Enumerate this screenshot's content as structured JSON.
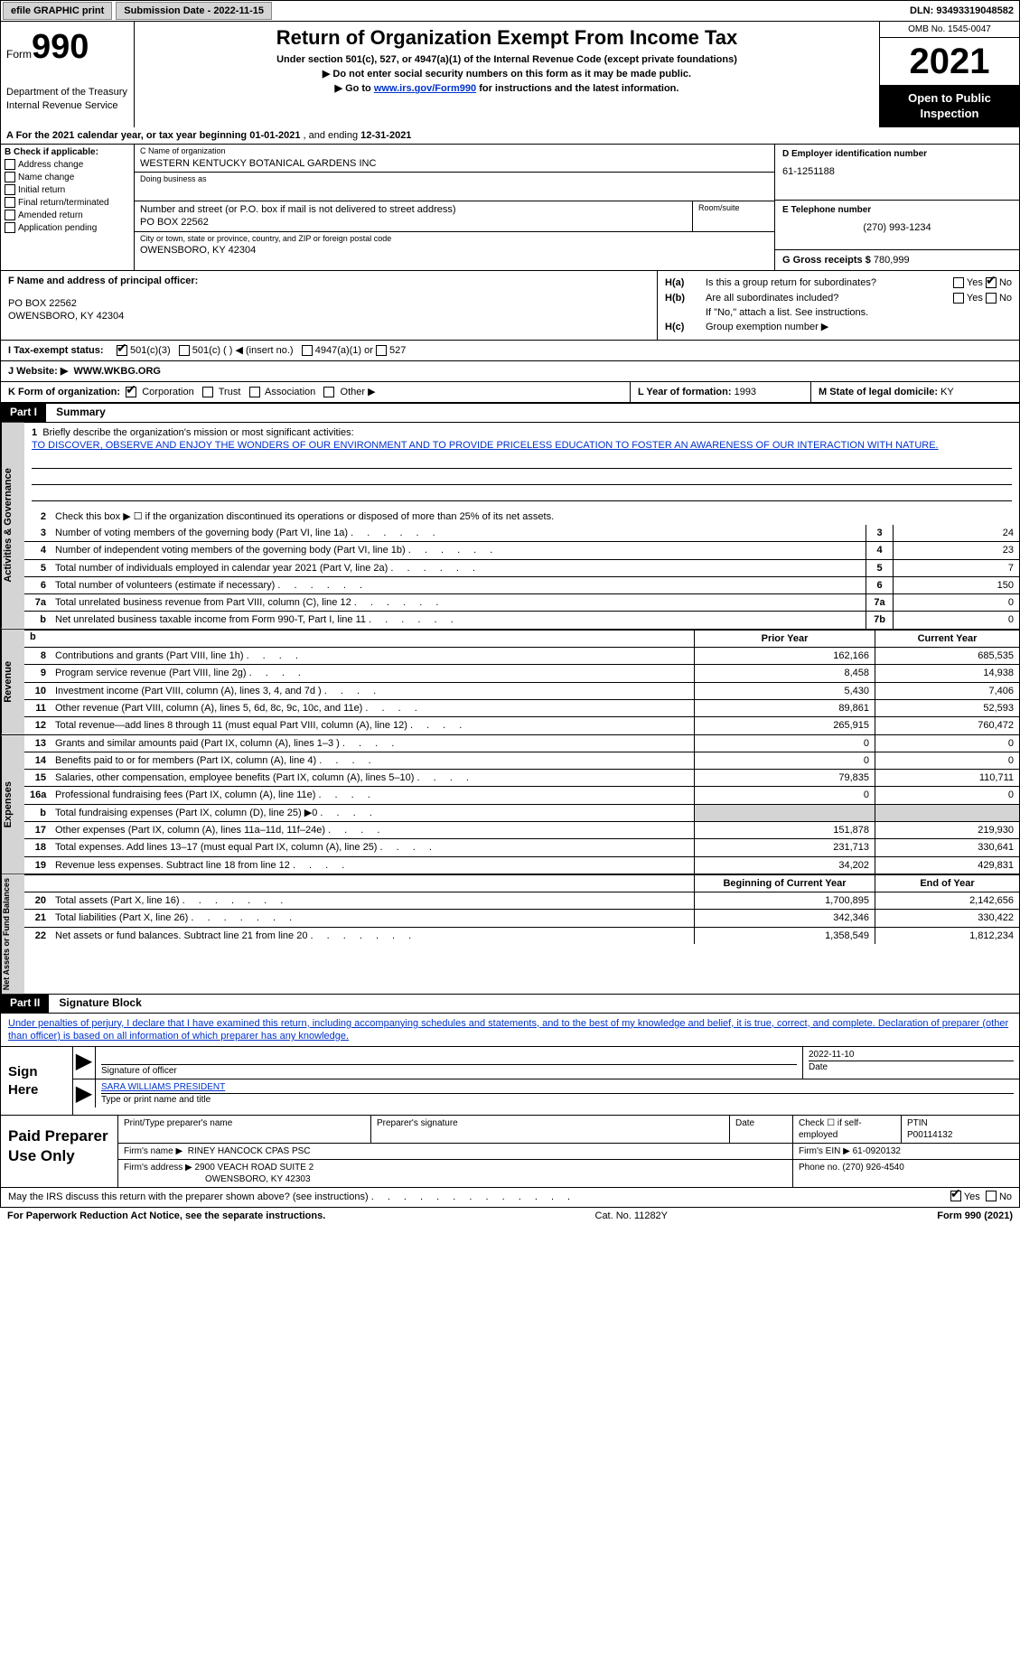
{
  "topbar": {
    "efile_btn": "efile GRAPHIC print",
    "submission_label": "Submission Date - 2022-11-15",
    "dln": "DLN: 93493319048582"
  },
  "header": {
    "form_prefix": "Form",
    "form_number": "990",
    "dept": "Department of the Treasury",
    "irs": "Internal Revenue Service",
    "title": "Return of Organization Exempt From Income Tax",
    "subtitle": "Under section 501(c), 527, or 4947(a)(1) of the Internal Revenue Code (except private foundations)",
    "instr1": "▶ Do not enter social security numbers on this form as it may be made public.",
    "instr2_pre": "▶ Go to ",
    "instr2_link": "www.irs.gov/Form990",
    "instr2_post": " for instructions and the latest information.",
    "omb": "OMB No. 1545-0047",
    "year": "2021",
    "open_pub": "Open to Public Inspection"
  },
  "line_a": {
    "text_pre": "A For the 2021 calendar year, or tax year beginning ",
    "begin": "01-01-2021",
    "mid": " , and ending ",
    "end": "12-31-2021"
  },
  "box_b": {
    "label": "B Check if applicable:",
    "items": [
      "Address change",
      "Name change",
      "Initial return",
      "Final return/terminated",
      "Amended return",
      "Application pending"
    ]
  },
  "box_c": {
    "name_label": "C Name of organization",
    "name": "WESTERN KENTUCKY BOTANICAL GARDENS INC",
    "dba_label": "Doing business as",
    "addr_label": "Number and street (or P.O. box if mail is not delivered to street address)",
    "addr": "PO BOX 22562",
    "room_label": "Room/suite",
    "city_label": "City or town, state or province, country, and ZIP or foreign postal code",
    "city": "OWENSBORO, KY  42304"
  },
  "box_d": {
    "ein_label": "D Employer identification number",
    "ein": "61-1251188",
    "phone_label": "E Telephone number",
    "phone": "(270) 993-1234",
    "gross_label": "G Gross receipts $",
    "gross": "780,999"
  },
  "box_f": {
    "label": "F Name and address of principal officer:",
    "addr1": "PO BOX 22562",
    "addr2": "OWENSBORO, KY  42304"
  },
  "box_h": {
    "ha_label": "H(a)",
    "ha_text": "Is this a group return for subordinates?",
    "hb_label": "H(b)",
    "hb_text": "Are all subordinates included?",
    "hb_note": "If \"No,\" attach a list. See instructions.",
    "hc_label": "H(c)",
    "hc_text": "Group exemption number ▶",
    "yes": "Yes",
    "no": "No"
  },
  "box_i": {
    "label": "I   Tax-exempt status:",
    "opt1": "501(c)(3)",
    "opt2": "501(c) (  ) ◀ (insert no.)",
    "opt3": "4947(a)(1) or",
    "opt4": "527"
  },
  "box_j": {
    "label": "J   Website: ▶",
    "val": "WWW.WKBG.ORG"
  },
  "box_k": {
    "label": "K Form of organization:",
    "opts": [
      "Corporation",
      "Trust",
      "Association",
      "Other ▶"
    ],
    "l_label": "L Year of formation:",
    "l_val": "1993",
    "m_label": "M State of legal domicile:",
    "m_val": "KY"
  },
  "part1": {
    "header": "Part I",
    "title": "Summary",
    "line1_label": "Briefly describe the organization's mission or most significant activities:",
    "mission": "TO DISCOVER, OBSERVE AND ENJOY THE WONDERS OF OUR ENVIRONMENT AND TO PROVIDE PRICELESS EDUCATION TO FOSTER AN AWARENESS OF OUR INTERACTION WITH NATURE.",
    "line2": "Check this box ▶ ☐ if the organization discontinued its operations or disposed of more than 25% of its net assets.",
    "vtab_ag": "Activities & Governance",
    "vtab_rev": "Revenue",
    "vtab_exp": "Expenses",
    "vtab_na": "Net Assets or Fund Balances",
    "lines_small": [
      {
        "n": "3",
        "t": "Number of voting members of the governing body (Part VI, line 1a)",
        "box": "3",
        "v": "24"
      },
      {
        "n": "4",
        "t": "Number of independent voting members of the governing body (Part VI, line 1b)",
        "box": "4",
        "v": "23"
      },
      {
        "n": "5",
        "t": "Total number of individuals employed in calendar year 2021 (Part V, line 2a)",
        "box": "5",
        "v": "7"
      },
      {
        "n": "6",
        "t": "Total number of volunteers (estimate if necessary)",
        "box": "6",
        "v": "150"
      },
      {
        "n": "7a",
        "t": "Total unrelated business revenue from Part VIII, column (C), line 12",
        "box": "7a",
        "v": "0"
      },
      {
        "n": "b",
        "t": "Net unrelated business taxable income from Form 990-T, Part I, line 11",
        "box": "7b",
        "v": "0"
      }
    ],
    "col_prior": "Prior Year",
    "col_current": "Current Year",
    "col_begin": "Beginning of Current Year",
    "col_end": "End of Year",
    "revenue": [
      {
        "n": "8",
        "t": "Contributions and grants (Part VIII, line 1h)",
        "p": "162,166",
        "c": "685,535"
      },
      {
        "n": "9",
        "t": "Program service revenue (Part VIII, line 2g)",
        "p": "8,458",
        "c": "14,938"
      },
      {
        "n": "10",
        "t": "Investment income (Part VIII, column (A), lines 3, 4, and 7d )",
        "p": "5,430",
        "c": "7,406"
      },
      {
        "n": "11",
        "t": "Other revenue (Part VIII, column (A), lines 5, 6d, 8c, 9c, 10c, and 11e)",
        "p": "89,861",
        "c": "52,593"
      },
      {
        "n": "12",
        "t": "Total revenue—add lines 8 through 11 (must equal Part VIII, column (A), line 12)",
        "p": "265,915",
        "c": "760,472"
      }
    ],
    "expenses": [
      {
        "n": "13",
        "t": "Grants and similar amounts paid (Part IX, column (A), lines 1–3 )",
        "p": "0",
        "c": "0"
      },
      {
        "n": "14",
        "t": "Benefits paid to or for members (Part IX, column (A), line 4)",
        "p": "0",
        "c": "0"
      },
      {
        "n": "15",
        "t": "Salaries, other compensation, employee benefits (Part IX, column (A), lines 5–10)",
        "p": "79,835",
        "c": "110,711"
      },
      {
        "n": "16a",
        "t": "Professional fundraising fees (Part IX, column (A), line 11e)",
        "p": "0",
        "c": "0"
      },
      {
        "n": "b",
        "t": "Total fundraising expenses (Part IX, column (D), line 25) ▶0",
        "p": "SHADE",
        "c": "SHADE"
      },
      {
        "n": "17",
        "t": "Other expenses (Part IX, column (A), lines 11a–11d, 11f–24e)",
        "p": "151,878",
        "c": "219,930"
      },
      {
        "n": "18",
        "t": "Total expenses. Add lines 13–17 (must equal Part IX, column (A), line 25)",
        "p": "231,713",
        "c": "330,641"
      },
      {
        "n": "19",
        "t": "Revenue less expenses. Subtract line 18 from line 12",
        "p": "34,202",
        "c": "429,831"
      }
    ],
    "netassets": [
      {
        "n": "20",
        "t": "Total assets (Part X, line 16)",
        "p": "1,700,895",
        "c": "2,142,656"
      },
      {
        "n": "21",
        "t": "Total liabilities (Part X, line 26)",
        "p": "342,346",
        "c": "330,422"
      },
      {
        "n": "22",
        "t": "Net assets or fund balances. Subtract line 21 from line 20",
        "p": "1,358,549",
        "c": "1,812,234"
      }
    ]
  },
  "part2": {
    "header": "Part II",
    "title": "Signature Block",
    "intro": "Under penalties of perjury, I declare that I have examined this return, including accompanying schedules and statements, and to the best of my knowledge and belief, it is true, correct, and complete. Declaration of preparer (other than officer) is based on all information of which preparer has any knowledge.",
    "sign_here": "Sign Here",
    "sig_officer": "Signature of officer",
    "sig_date": "2022-11-10",
    "date_label": "Date",
    "name_title": "SARA WILLIAMS  PRESIDENT",
    "name_title_label": "Type or print name and title",
    "paid_prep": "Paid Preparer Use Only",
    "prep_name_label": "Print/Type preparer's name",
    "prep_sig_label": "Preparer's signature",
    "prep_check": "Check ☐ if self-employed",
    "ptin_label": "PTIN",
    "ptin": "P00114132",
    "firm_name_label": "Firm's name    ▶",
    "firm_name": "RINEY HANCOCK CPAS PSC",
    "firm_ein_label": "Firm's EIN ▶",
    "firm_ein": "61-0920132",
    "firm_addr_label": "Firm's address ▶",
    "firm_addr1": "2900 VEACH ROAD SUITE 2",
    "firm_addr2": "OWENSBORO, KY  42303",
    "firm_phone_label": "Phone no.",
    "firm_phone": "(270) 926-4540",
    "discuss_q": "May the IRS discuss this return with the preparer shown above? (see instructions)",
    "yes": "Yes",
    "no": "No"
  },
  "footer": {
    "pra": "For Paperwork Reduction Act Notice, see the separate instructions.",
    "cat": "Cat. No. 11282Y",
    "form": "Form 990 (2021)"
  }
}
